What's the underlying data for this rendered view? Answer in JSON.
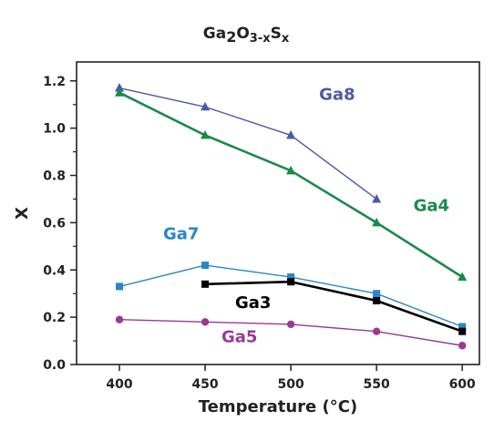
{
  "chart_data": {
    "type": "line",
    "title": {
      "base": "Ga",
      "sub1": "2",
      "mid": "O",
      "sub2": "3-x",
      "mid2": "S",
      "sub3": "x"
    },
    "xlabel": "Temperature (°C)",
    "ylabel": "X",
    "xlim": [
      375,
      610
    ],
    "ylim": [
      0.0,
      1.28
    ],
    "xticks": [
      400,
      450,
      500,
      550,
      600
    ],
    "yticks": [
      0.0,
      0.2,
      0.4,
      0.6,
      0.8,
      1.0,
      1.2
    ],
    "ytick_labels": [
      "0.0",
      "0.2",
      "0.4",
      "0.6",
      "0.8",
      "1.0",
      "1.2"
    ],
    "series": [
      {
        "name": "Ga8",
        "color": "#4a5aa8",
        "marker": "triangle",
        "line_width": 1.4,
        "x": [
          400,
          450,
          500,
          550
        ],
        "y": [
          1.17,
          1.09,
          0.97,
          0.7
        ],
        "label_pos": {
          "x": 527,
          "y": 1.12
        }
      },
      {
        "name": "Ga4",
        "color": "#1a8a4a",
        "marker": "triangle",
        "line_width": 2.6,
        "x": [
          400,
          450,
          500,
          550,
          600
        ],
        "y": [
          1.15,
          0.97,
          0.82,
          0.6,
          0.37
        ],
        "label_pos": {
          "x": 582,
          "y": 0.65
        }
      },
      {
        "name": "Ga7",
        "color": "#2a86c6",
        "marker": "square",
        "line_width": 1.4,
        "x": [
          400,
          450,
          500,
          550,
          600
        ],
        "y": [
          0.33,
          0.42,
          0.37,
          0.3,
          0.16
        ],
        "label_pos": {
          "x": 436,
          "y": 0.53
        }
      },
      {
        "name": "Ga3",
        "color": "#000000",
        "marker": "square",
        "line_width": 2.6,
        "x": [
          450,
          500,
          550,
          600
        ],
        "y": [
          0.34,
          0.35,
          0.27,
          0.14
        ],
        "label_pos": {
          "x": 478,
          "y": 0.24
        }
      },
      {
        "name": "Ga5",
        "color": "#9a3a92",
        "marker": "circle",
        "line_width": 1.4,
        "x": [
          400,
          450,
          500,
          550,
          600
        ],
        "y": [
          0.19,
          0.18,
          0.17,
          0.14,
          0.08
        ],
        "label_pos": {
          "x": 470,
          "y": 0.095
        }
      }
    ]
  }
}
